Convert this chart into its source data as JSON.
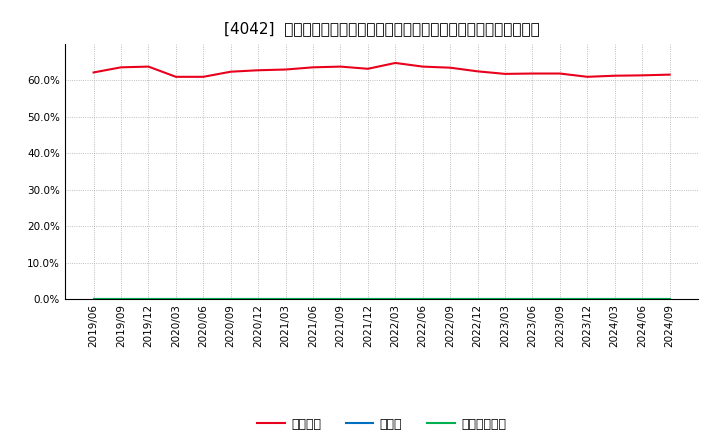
{
  "title": "[4042]  自己資本、のれん、繰延税金資産の総資産に対する比率の推移",
  "x_labels": [
    "2019/06",
    "2019/09",
    "2019/12",
    "2020/03",
    "2020/06",
    "2020/09",
    "2020/12",
    "2021/03",
    "2021/06",
    "2021/09",
    "2021/12",
    "2022/03",
    "2022/06",
    "2022/09",
    "2022/12",
    "2023/03",
    "2023/06",
    "2023/09",
    "2023/12",
    "2024/03",
    "2024/06",
    "2024/09"
  ],
  "equity_ratio": [
    0.622,
    0.636,
    0.638,
    0.61,
    0.61,
    0.624,
    0.628,
    0.63,
    0.636,
    0.638,
    0.632,
    0.648,
    0.638,
    0.635,
    0.625,
    0.618,
    0.619,
    0.619,
    0.61,
    0.613,
    0.614,
    0.616
  ],
  "goodwill_ratio": [
    0.0,
    0.0,
    0.0,
    0.0,
    0.0,
    0.0,
    0.0,
    0.0,
    0.0,
    0.0,
    0.0,
    0.0,
    0.0,
    0.0,
    0.0,
    0.0,
    0.0,
    0.0,
    0.0,
    0.0,
    0.0,
    0.0
  ],
  "deferred_tax_ratio": [
    0.0,
    0.0,
    0.0,
    0.0,
    0.0,
    0.0,
    0.0,
    0.0,
    0.0,
    0.0,
    0.0,
    0.0,
    0.0,
    0.0,
    0.0,
    0.0,
    0.0,
    0.0,
    0.0,
    0.0,
    0.0,
    0.0
  ],
  "equity_color": "#e8001c",
  "goodwill_color": "#0070c0",
  "deferred_tax_color": "#00b050",
  "background_color": "#ffffff",
  "plot_bg_color": "#ffffff",
  "grid_color": "#aaaaaa",
  "ylim": [
    0.0,
    0.7
  ],
  "yticks": [
    0.0,
    0.1,
    0.2,
    0.3,
    0.4,
    0.5,
    0.6
  ],
  "legend_labels": [
    "自己資本",
    "のれん",
    "繰延税金資産"
  ],
  "title_fontsize": 11,
  "tick_fontsize": 7.5,
  "legend_fontsize": 9
}
